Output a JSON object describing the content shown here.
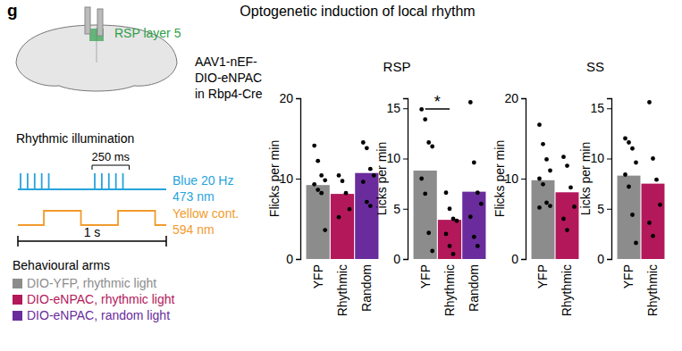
{
  "panel": "g",
  "title": "Optogenetic induction of local rhythm",
  "diagram": {
    "site": "RSP layer 5",
    "virus": [
      "AAV1-nEF-",
      "DIO-eNPAC",
      "in Rbp4-Cre"
    ],
    "illumination_title": "Rhythmic illumination",
    "period": "250 ms",
    "blue": [
      "Blue 20 Hz",
      "473 nm"
    ],
    "yellow": [
      "Yellow cont.",
      "594 nm"
    ],
    "duration": "1 s"
  },
  "legend": {
    "title": "Behavioural arms",
    "items": [
      {
        "label": "DIO-YFP, rhythmic light",
        "color": "#8c8c8c"
      },
      {
        "label": "DIO-eNPAC, rhythmic light",
        "color": "#b3185a"
      },
      {
        "label": "DIO-eNPAC, random light",
        "color": "#6a2c9c"
      }
    ]
  },
  "group_titles": [
    "RSP",
    "SS"
  ],
  "chart_data": [
    {
      "type": "bar",
      "y_label": "Flicks per min",
      "categories": [
        "YFP",
        "Rhythmic",
        "Random"
      ],
      "values": [
        9.2,
        8.1,
        10.7
      ],
      "colors": [
        "#8c8c8c",
        "#b3185a",
        "#6a2c9c"
      ],
      "points": [
        [
          14.1,
          12.2,
          10.4,
          9.8,
          9.3,
          8.6,
          8.2,
          3.6
        ],
        [
          10.4,
          9.7,
          8.2,
          6.2,
          5.2
        ],
        [
          14.5,
          13.8,
          11.2,
          10.4,
          9.6,
          7.1,
          6.6
        ]
      ],
      "ylim": [
        0,
        20
      ],
      "yticks": [
        0,
        10,
        20
      ]
    },
    {
      "type": "bar",
      "y_label": "Licks per min",
      "categories": [
        "YFP",
        "Rhythmic",
        "Random"
      ],
      "values": [
        8.8,
        3.9,
        6.7
      ],
      "colors": [
        "#8c8c8c",
        "#b3185a",
        "#6a2c9c"
      ],
      "points": [
        [
          14.9,
          13.9,
          11.6,
          11.2,
          8.0,
          6.5,
          2.6,
          0.8
        ],
        [
          6.6,
          5.0,
          4.0,
          3.8,
          2.5,
          1.3,
          0.5
        ],
        [
          15.6,
          9.6,
          6.6,
          5.5,
          4.2,
          2.2,
          1.3
        ]
      ],
      "ylim": [
        0,
        16
      ],
      "yticks": [
        0,
        5,
        10,
        15
      ],
      "annotations": [
        {
          "text": "*",
          "between": [
            "YFP",
            "Rhythmic"
          ]
        }
      ]
    },
    {
      "type": "bar",
      "y_label": "Flicks per min",
      "categories": [
        "YFP",
        "Rhythmic"
      ],
      "values": [
        9.8,
        8.3
      ],
      "colors": [
        "#8c8c8c",
        "#b3185a"
      ],
      "points": [
        [
          16.7,
          14.3,
          12.4,
          11.0,
          10.0,
          9.3,
          7.0,
          6.6,
          6.4
        ],
        [
          12.7,
          11.6,
          8.9,
          6.5,
          5.0,
          3.6
        ]
      ],
      "ylim": [
        0,
        20
      ],
      "yticks": [
        0,
        10,
        20
      ]
    },
    {
      "type": "bar",
      "y_label": "Licks per min",
      "categories": [
        "YFP",
        "Rhythmic"
      ],
      "values": [
        8.3,
        7.5
      ],
      "colors": [
        "#8c8c8c",
        "#b3185a"
      ],
      "points": [
        [
          12.0,
          11.6,
          11.0,
          9.6,
          8.4,
          7.2,
          4.4,
          1.6
        ],
        [
          15.6,
          10.0,
          7.9,
          5.4,
          3.6,
          2.3
        ]
      ],
      "ylim": [
        0,
        16
      ],
      "yticks": [
        0,
        5,
        10,
        15
      ]
    }
  ]
}
